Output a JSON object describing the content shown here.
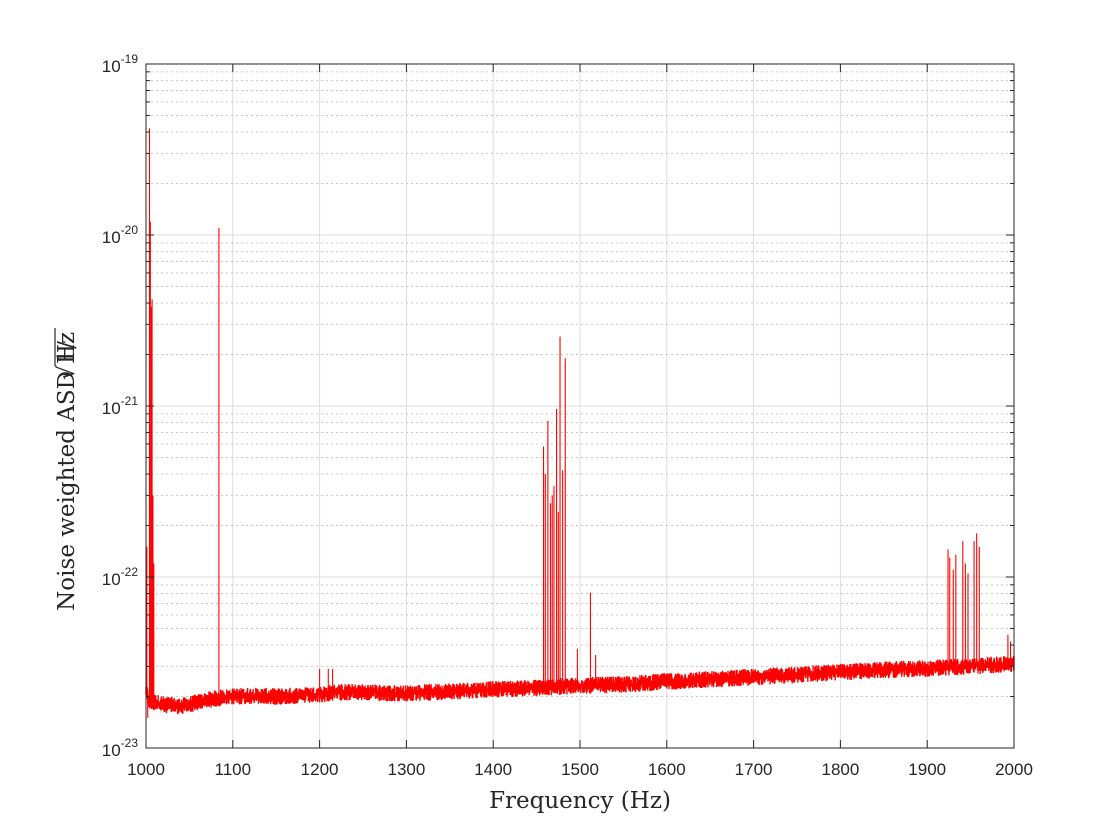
{
  "chart_data": {
    "type": "line",
    "xlabel": "Frequency (Hz)",
    "ylabel_prefix": "Noise weighted ASD 1/",
    "ylabel_sqrt": "Hz",
    "x_scale": "linear",
    "y_scale": "log",
    "xlim": [
      1000,
      2000
    ],
    "ylim": [
      1e-23,
      1e-19
    ],
    "x_ticks": [
      1000,
      1100,
      1200,
      1300,
      1400,
      1500,
      1600,
      1700,
      1800,
      1900,
      2000
    ],
    "x_tick_labels": [
      "1000",
      "1100",
      "1200",
      "1300",
      "1400",
      "1500",
      "1600",
      "1700",
      "1800",
      "1900",
      "2000"
    ],
    "y_ticks": [
      {
        "value": 1e-23,
        "base": "10",
        "exp": "-23"
      },
      {
        "value": 1e-22,
        "base": "10",
        "exp": "-22"
      },
      {
        "value": 1e-21,
        "base": "10",
        "exp": "-21"
      },
      {
        "value": 1e-20,
        "base": "10",
        "exp": "-20"
      },
      {
        "value": 1e-19,
        "base": "10",
        "exp": "-19"
      }
    ],
    "grid": true,
    "minor_grid": true,
    "line_color": "#ff0000",
    "series": [
      {
        "baseline": [
          [
            1000,
            2.2e-23
          ],
          [
            1003,
            1.9e-23
          ],
          [
            1010,
            1.85e-23
          ],
          [
            1020,
            1.8e-23
          ],
          [
            1040,
            1.75e-23
          ],
          [
            1060,
            1.85e-23
          ],
          [
            1080,
            1.95e-23
          ],
          [
            1100,
            2e-23
          ],
          [
            1120,
            2.02e-23
          ],
          [
            1150,
            2e-23
          ],
          [
            1200,
            2.05e-23
          ],
          [
            1220,
            2.12e-23
          ],
          [
            1250,
            2.12e-23
          ],
          [
            1300,
            2.08e-23
          ],
          [
            1350,
            2.15e-23
          ],
          [
            1400,
            2.2e-23
          ],
          [
            1450,
            2.25e-23
          ],
          [
            1500,
            2.32e-23
          ],
          [
            1550,
            2.35e-23
          ],
          [
            1600,
            2.45e-23
          ],
          [
            1650,
            2.52e-23
          ],
          [
            1700,
            2.6e-23
          ],
          [
            1750,
            2.68e-23
          ],
          [
            1800,
            2.78e-23
          ],
          [
            1850,
            2.86e-23
          ],
          [
            1900,
            2.92e-23
          ],
          [
            1950,
            3e-23
          ],
          [
            1990,
            3.1e-23
          ],
          [
            2000,
            3.1e-23
          ]
        ],
        "noise_band": 1.12,
        "spikes": [
          [
            1001,
            1.5e-22
          ],
          [
            1002,
            1.5e-23
          ],
          [
            1004,
            4.2e-20
          ],
          [
            1005,
            1.2e-20
          ],
          [
            1006,
            3.8e-21
          ],
          [
            1007,
            4.2e-21
          ],
          [
            1008,
            3e-22
          ],
          [
            1009,
            1.2e-22
          ],
          [
            1084,
            1.1e-20
          ],
          [
            1200,
            2.9e-23
          ],
          [
            1210,
            2.9e-23
          ],
          [
            1215,
            2.9e-23
          ],
          [
            1458,
            5.8e-22
          ],
          [
            1460,
            4e-22
          ],
          [
            1463,
            8.2e-22
          ],
          [
            1466,
            2.7e-22
          ],
          [
            1468,
            3e-22
          ],
          [
            1470,
            3.4e-22
          ],
          [
            1473,
            9.6e-22
          ],
          [
            1475,
            2.4e-22
          ],
          [
            1477,
            2.55e-21
          ],
          [
            1480,
            4.2e-22
          ],
          [
            1483,
            1.9e-21
          ],
          [
            1497,
            3.8e-23
          ],
          [
            1512,
            8.1e-23
          ],
          [
            1518,
            3.5e-23
          ],
          [
            1924,
            1.45e-22
          ],
          [
            1926,
            1.3e-22
          ],
          [
            1930,
            1.1e-22
          ],
          [
            1933,
            1.35e-22
          ],
          [
            1941,
            1.62e-22
          ],
          [
            1944,
            1.2e-22
          ],
          [
            1947,
            1.05e-22
          ],
          [
            1954,
            1.62e-22
          ],
          [
            1957,
            1.8e-22
          ],
          [
            1960,
            1.5e-22
          ],
          [
            1993,
            4.6e-23
          ],
          [
            1996,
            4.2e-23
          ]
        ]
      }
    ]
  }
}
